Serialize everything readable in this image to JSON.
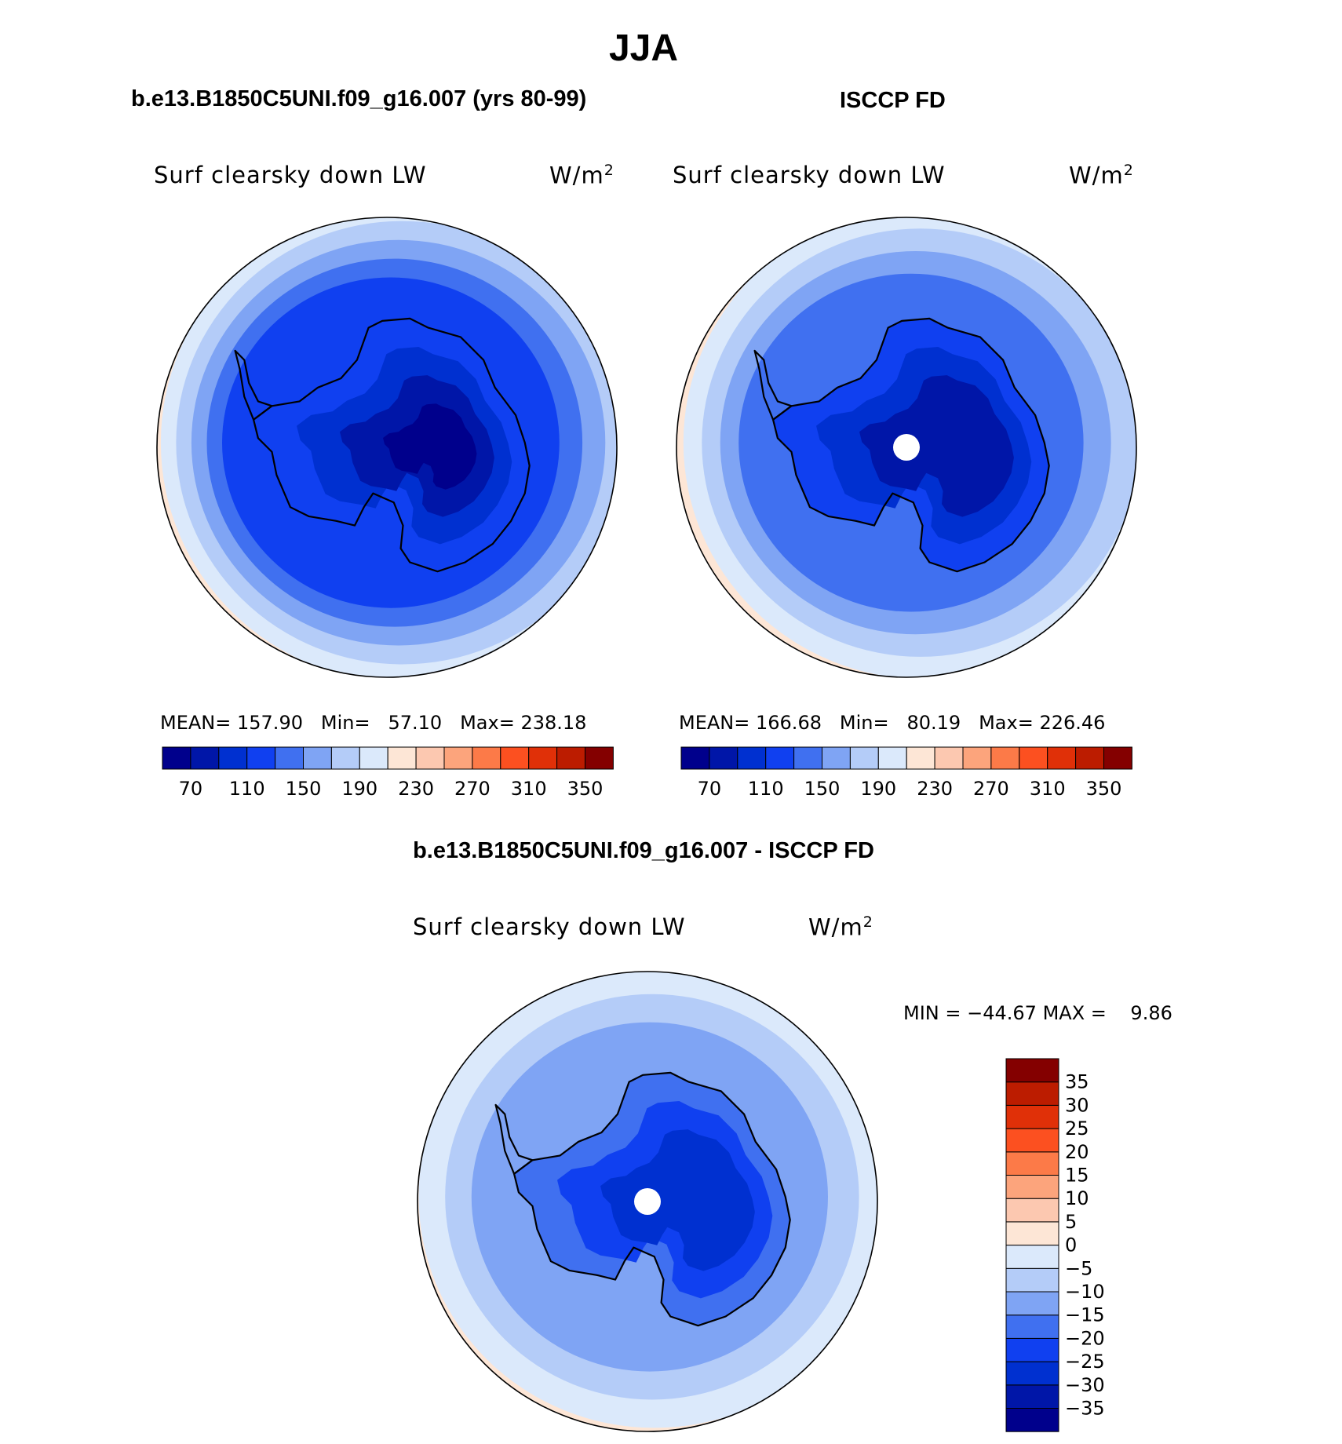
{
  "figure": {
    "title": "JJA",
    "left_panel_title": "b.e13.B1850C5UNI.f09_g16.007 (yrs 80-99)",
    "right_panel_title": "ISCCP FD",
    "bottom_panel_title": "b.e13.B1850C5UNI.f09_g16.007 - ISCCP FD"
  },
  "chart_data": [
    {
      "type": "heatmap",
      "projection": "south polar stereographic",
      "variable": "Surf clearsky down LW",
      "units": "W/m",
      "units_exponent": "2",
      "stats_text": {
        "mean_label": "MEAN=",
        "mean": "157.90",
        "min_label": "Min=",
        "min": "57.10",
        "max_label": "Max=",
        "max": "238.18"
      },
      "colorbar": {
        "orientation": "horizontal",
        "colors": [
          "#00008c",
          "#0016a8",
          "#0030d0",
          "#1040f0",
          "#4070f0",
          "#7fa4f4",
          "#b4ccf8",
          "#dbe9fb",
          "#fde6d6",
          "#fcc8b0",
          "#fca47c",
          "#fc7a48",
          "#fc5020",
          "#e03008",
          "#bc1c00",
          "#840000"
        ],
        "tick_labels": [
          "70",
          "110",
          "150",
          "190",
          "230",
          "270",
          "310",
          "350"
        ]
      },
      "field": {
        "continent_bins": [
          0,
          1,
          2,
          3
        ],
        "ocean_rings": [
          3,
          4,
          5,
          6,
          7,
          8
        ],
        "pole_missing": false
      }
    },
    {
      "type": "heatmap",
      "projection": "south polar stereographic",
      "variable": "Surf clearsky down LW",
      "units": "W/m",
      "units_exponent": "2",
      "stats_text": {
        "mean_label": "MEAN=",
        "mean": "166.68",
        "min_label": "Min=",
        "min": "80.19",
        "max_label": "Max=",
        "max": "226.46"
      },
      "colorbar": {
        "orientation": "horizontal",
        "colors": [
          "#00008c",
          "#0016a8",
          "#0030d0",
          "#1040f0",
          "#4070f0",
          "#7fa4f4",
          "#b4ccf8",
          "#dbe9fb",
          "#fde6d6",
          "#fcc8b0",
          "#fca47c",
          "#fc7a48",
          "#fc5020",
          "#e03008",
          "#bc1c00",
          "#840000"
        ],
        "tick_labels": [
          "70",
          "110",
          "150",
          "190",
          "230",
          "270",
          "310",
          "350"
        ]
      },
      "field": {
        "continent_bins": [
          1,
          2,
          3
        ],
        "ocean_rings": [
          4,
          5,
          6,
          7,
          8
        ],
        "pole_missing": true
      }
    },
    {
      "type": "heatmap",
      "projection": "south polar stereographic",
      "variable": "Surf clearsky down LW",
      "units": "W/m",
      "units_exponent": "2",
      "stats_text": {
        "min_label": "MIN =",
        "min": "−44.67",
        "max_label": "MAX =",
        "max": "9.86"
      },
      "colorbar": {
        "orientation": "vertical",
        "colors": [
          "#00008c",
          "#0016a8",
          "#0030d0",
          "#1040f0",
          "#4070f0",
          "#7fa4f4",
          "#b4ccf8",
          "#dbe9fb",
          "#fde6d6",
          "#fcc8b0",
          "#fca47c",
          "#fc7a48",
          "#fc5020",
          "#e03008",
          "#bc1c00",
          "#840000"
        ],
        "tick_labels": [
          "−35",
          "−30",
          "−25",
          "−20",
          "−15",
          "−10",
          "−5",
          "0",
          "5",
          "10",
          "15",
          "20",
          "25",
          "30",
          "35"
        ]
      },
      "field": {
        "continent_bins": [
          2,
          3,
          4
        ],
        "ocean_rings": [
          5,
          6,
          7,
          8
        ],
        "pole_missing": true
      }
    }
  ]
}
